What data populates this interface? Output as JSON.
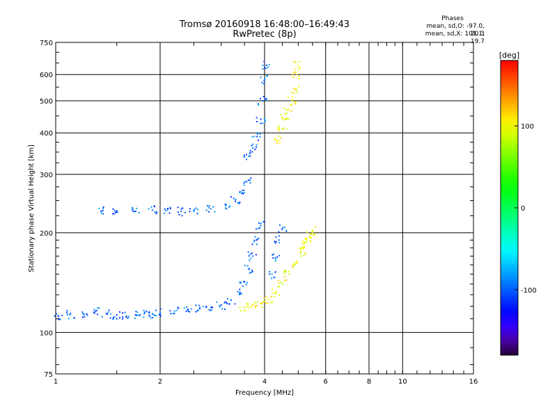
{
  "header": {
    "title_line1": "Tromsø 20160918 16:48:00–16:49:43",
    "title_line2": "RwPretec (8p)",
    "stats_heading": "Phases",
    "stats_o": "mean, sd,O: -97.0, 20.3",
    "stats_x": "mean, sd,X: 101.1, 19.7"
  },
  "chart_data": {
    "type": "scatter",
    "xlabel": "Frequency [MHz]",
    "ylabel": "Stationary phase Virtual Height [km]",
    "xscale": "log",
    "yscale": "log",
    "xlim": [
      1,
      16
    ],
    "ylim": [
      75,
      750
    ],
    "xticks": [
      1,
      2,
      4,
      6,
      8,
      10,
      16
    ],
    "xtick_labels": [
      "1",
      "2",
      "4",
      "6",
      "8",
      "10",
      "16"
    ],
    "yticks": [
      75,
      100,
      200,
      300,
      400,
      500,
      600,
      750
    ],
    "ytick_labels": [
      "75",
      "100",
      "200",
      "300",
      "400",
      "500",
      "600",
      "750"
    ],
    "grid": true,
    "colorbar": {
      "label": "[deg]",
      "range": [
        -180,
        180
      ],
      "ticks": [
        100,
        0,
        -100
      ],
      "tick_labels": [
        "100",
        "0",
        "-100"
      ],
      "colormap": "rainbow"
    },
    "series": [
      {
        "polarization": "O",
        "phase_mean": -97,
        "phase_sd": 20.3,
        "points": [
          [
            1.02,
            112
          ],
          [
            1.1,
            113
          ],
          [
            1.2,
            114
          ],
          [
            1.3,
            116
          ],
          [
            1.4,
            114
          ],
          [
            1.5,
            113
          ],
          [
            1.6,
            112
          ],
          [
            1.7,
            113
          ],
          [
            1.8,
            114
          ],
          [
            1.9,
            114
          ],
          [
            2.0,
            115
          ],
          [
            2.2,
            116
          ],
          [
            2.4,
            117
          ],
          [
            2.6,
            118
          ],
          [
            2.8,
            119
          ],
          [
            3.0,
            121
          ],
          [
            3.2,
            125
          ],
          [
            3.4,
            132
          ],
          [
            3.5,
            142
          ],
          [
            3.6,
            155
          ],
          [
            3.7,
            170
          ],
          [
            3.8,
            190
          ],
          [
            3.9,
            210
          ],
          [
            1.35,
            232
          ],
          [
            1.5,
            233
          ],
          [
            1.7,
            232
          ],
          [
            1.9,
            234
          ],
          [
            2.1,
            234
          ],
          [
            2.3,
            232
          ],
          [
            2.5,
            233
          ],
          [
            2.8,
            236
          ],
          [
            3.1,
            242
          ],
          [
            3.3,
            252
          ],
          [
            3.45,
            268
          ],
          [
            3.55,
            285
          ],
          [
            3.6,
            340
          ],
          [
            3.7,
            360
          ],
          [
            3.8,
            390
          ],
          [
            3.9,
            440
          ],
          [
            3.95,
            500
          ],
          [
            4.0,
            580
          ],
          [
            4.05,
            640
          ],
          [
            4.2,
            150
          ],
          [
            4.3,
            168
          ],
          [
            4.4,
            190
          ],
          [
            4.5,
            205
          ]
        ]
      },
      {
        "polarization": "X",
        "phase_mean": 101.1,
        "phase_sd": 19.7,
        "points": [
          [
            3.5,
            119
          ],
          [
            3.7,
            120
          ],
          [
            3.9,
            122
          ],
          [
            4.1,
            126
          ],
          [
            4.3,
            132
          ],
          [
            4.5,
            140
          ],
          [
            4.7,
            150
          ],
          [
            4.9,
            162
          ],
          [
            5.1,
            175
          ],
          [
            5.3,
            190
          ],
          [
            5.5,
            202
          ],
          [
            5.4,
            195
          ],
          [
            5.2,
            180
          ],
          [
            4.4,
            380
          ],
          [
            4.5,
            410
          ],
          [
            4.6,
            440
          ],
          [
            4.7,
            470
          ],
          [
            4.8,
            500
          ],
          [
            4.9,
            540
          ],
          [
            4.95,
            600
          ],
          [
            5.0,
            640
          ]
        ]
      }
    ]
  }
}
